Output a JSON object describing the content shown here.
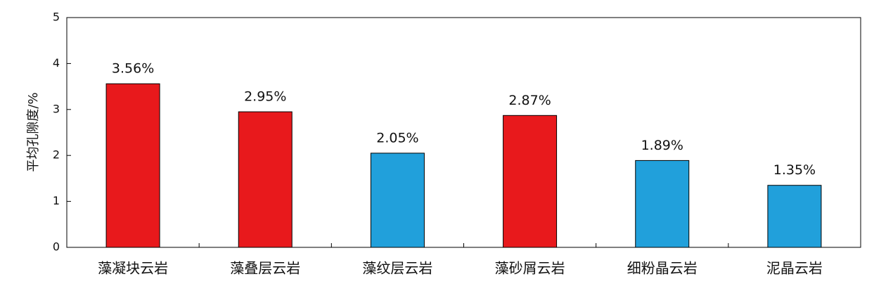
{
  "chart_data": {
    "type": "bar",
    "ylabel": "平均孔隙度/%",
    "categories": [
      "藻凝块云岩",
      "藻叠层云岩",
      "藻纹层云岩",
      "藻砂屑云岩",
      "细粉晶云岩",
      "泥晶云岩"
    ],
    "values": [
      3.56,
      2.95,
      2.05,
      2.87,
      1.89,
      1.35
    ],
    "value_labels": [
      "3.56%",
      "2.95%",
      "2.05%",
      "2.87%",
      "1.89%",
      "1.35%"
    ],
    "colors": [
      "#e8191c",
      "#e8191c",
      "#21a0db",
      "#e8191c",
      "#21a0db",
      "#21a0db"
    ],
    "ylim": [
      0,
      5
    ],
    "yticks": [
      0,
      1,
      2,
      3,
      4,
      5
    ],
    "grid": false
  }
}
